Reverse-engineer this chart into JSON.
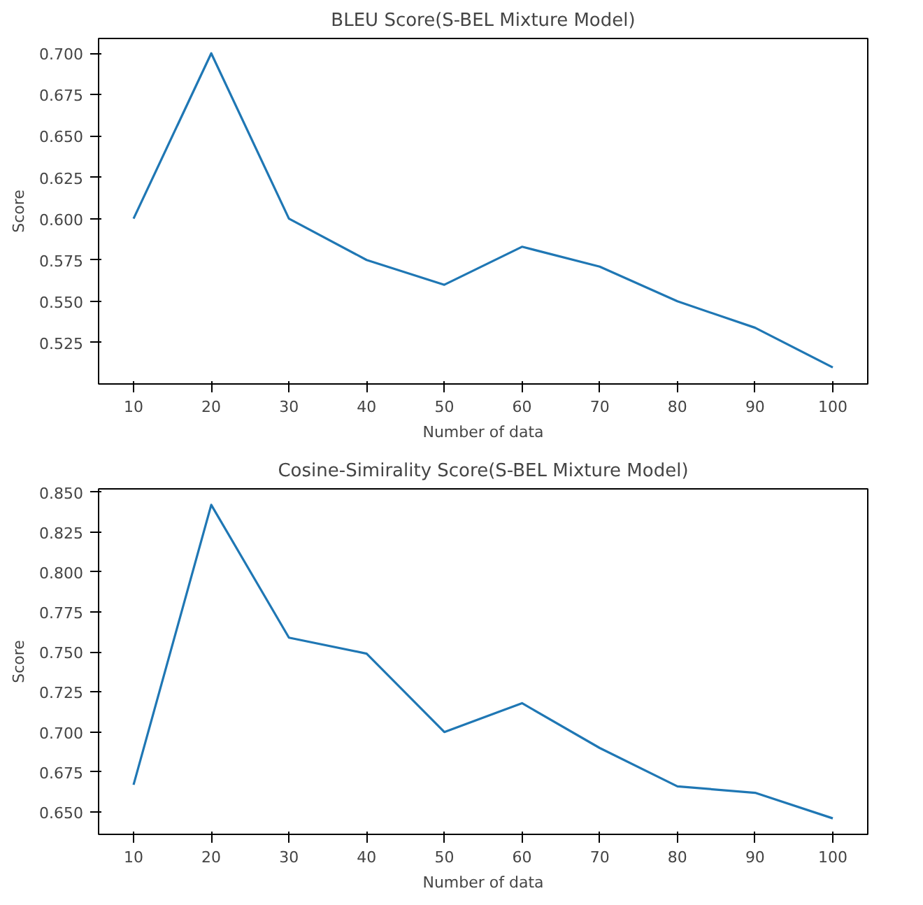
{
  "chart_data": [
    {
      "type": "line",
      "title": "BLEU Score(S-BEL Mixture Model)",
      "xlabel": "Number of data",
      "ylabel": "Score",
      "x": [
        10,
        20,
        30,
        40,
        50,
        60,
        70,
        80,
        90,
        100
      ],
      "series": [
        {
          "color": "#1f77b4",
          "values": [
            0.6,
            0.7,
            0.6,
            0.575,
            0.56,
            0.583,
            0.571,
            0.55,
            0.534,
            0.51
          ]
        }
      ],
      "xlim": [
        5.5,
        104.5
      ],
      "ylim": [
        0.5,
        0.709
      ],
      "xticks": [
        10,
        20,
        30,
        40,
        50,
        60,
        70,
        80,
        90,
        100
      ],
      "yticks": [
        0.525,
        {
          "value": 0.55,
          "label": "0.550"
        },
        0.575,
        {
          "value": 0.6,
          "label": "0.600"
        },
        0.625,
        {
          "value": 0.65,
          "label": "0.650"
        },
        0.675,
        {
          "value": 0.7,
          "label": "0.700"
        }
      ],
      "grid": false
    },
    {
      "type": "line",
      "title": "Cosine-Simirality Score(S-BEL Mixture Model)",
      "xlabel": "Number of data",
      "ylabel": "Score",
      "x": [
        10,
        20,
        30,
        40,
        50,
        60,
        70,
        80,
        90,
        100
      ],
      "series": [
        {
          "color": "#1f77b4",
          "values": [
            0.667,
            0.842,
            0.759,
            0.749,
            0.7,
            0.718,
            0.69,
            0.666,
            0.662,
            0.646
          ]
        }
      ],
      "xlim": [
        5.5,
        104.5
      ],
      "ylim": [
        0.636,
        0.852
      ],
      "xticks": [
        10,
        20,
        30,
        40,
        50,
        60,
        70,
        80,
        90,
        100
      ],
      "yticks": [
        {
          "value": 0.65,
          "label": "0.650"
        },
        0.675,
        {
          "value": 0.7,
          "label": "0.700"
        },
        0.725,
        {
          "value": 0.75,
          "label": "0.750"
        },
        0.775,
        {
          "value": 0.8,
          "label": "0.800"
        },
        0.825,
        {
          "value": 0.85,
          "label": "0.850"
        }
      ],
      "grid": false
    }
  ]
}
